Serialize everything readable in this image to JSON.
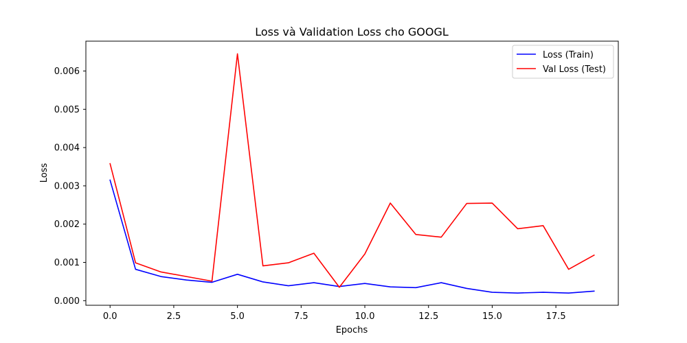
{
  "chart_data": {
    "type": "line",
    "title": "Loss và Validation Loss cho GOOGL",
    "xlabel": "Epochs",
    "ylabel": "Loss",
    "xlim": [
      -0.95,
      19.95
    ],
    "ylim": [
      -0.00012,
      0.00678
    ],
    "xticks": [
      0,
      2.5,
      5,
      7.5,
      10,
      12.5,
      15,
      17.5
    ],
    "xtick_labels": [
      "0.0",
      "2.5",
      "5.0",
      "7.5",
      "10.0",
      "12.5",
      "15.0",
      "17.5"
    ],
    "yticks": [
      0,
      0.001,
      0.002,
      0.003,
      0.004,
      0.005,
      0.006
    ],
    "ytick_labels": [
      "0.000",
      "0.001",
      "0.002",
      "0.003",
      "0.004",
      "0.005",
      "0.006"
    ],
    "grid": false,
    "legend_position": "top-right",
    "x": [
      0,
      1,
      2,
      3,
      4,
      5,
      6,
      7,
      8,
      9,
      10,
      11,
      12,
      13,
      14,
      15,
      16,
      17,
      18,
      19
    ],
    "series": [
      {
        "name": "Loss (Train)",
        "color": "#0000ff",
        "values": [
          0.00315,
          0.00082,
          0.00063,
          0.00054,
          0.00048,
          0.00069,
          0.00049,
          0.00039,
          0.00047,
          0.00037,
          0.00045,
          0.00036,
          0.00034,
          0.00047,
          0.00032,
          0.00022,
          0.0002,
          0.00022,
          0.0002,
          0.00025
        ]
      },
      {
        "name": "Val Loss (Test)",
        "color": "#ff0000",
        "values": [
          0.00358,
          0.00099,
          0.00075,
          0.00063,
          0.00051,
          0.00645,
          0.00091,
          0.00099,
          0.00124,
          0.00035,
          0.00122,
          0.00255,
          0.00173,
          0.00166,
          0.00254,
          0.00255,
          0.00188,
          0.00196,
          0.00082,
          0.00119
        ]
      }
    ]
  }
}
